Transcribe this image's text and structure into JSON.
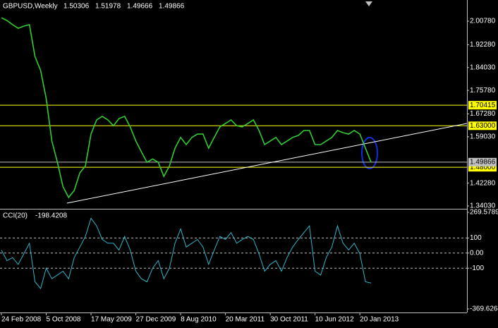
{
  "chart_data": [
    {
      "type": "line",
      "title": "GBPUSD,Weekly",
      "ohlc": [
        1.50306,
        1.51978,
        1.49666,
        1.49866
      ],
      "categories": [
        "24 Feb 2008",
        null,
        null,
        null,
        null,
        null,
        null,
        null,
        "5 Oct 2008",
        null,
        null,
        null,
        null,
        null,
        null,
        null,
        "17 May 2009",
        null,
        null,
        null,
        null,
        null,
        null,
        null,
        "27 Dec 2009",
        null,
        null,
        null,
        null,
        null,
        null,
        null,
        "8 Aug 2010",
        null,
        null,
        null,
        null,
        null,
        null,
        null,
        "20 Mar 2011",
        null,
        null,
        null,
        null,
        null,
        null,
        null,
        "30 Oct 2011",
        null,
        null,
        null,
        null,
        null,
        null,
        null,
        "10 Jun 2012",
        null,
        null,
        null,
        null,
        null,
        null,
        null,
        "20 Jan 2013",
        null,
        null
      ],
      "series": [
        {
          "color": "#33cc33",
          "values": [
            2.02,
            2.01,
            1.995,
            1.982,
            1.99,
            1.995,
            1.88,
            1.83,
            1.728,
            1.575,
            1.498,
            1.41,
            1.371,
            1.396,
            1.46,
            1.485,
            1.6,
            1.651,
            1.664,
            1.651,
            1.63,
            1.656,
            1.664,
            1.626,
            1.575,
            1.536,
            1.498,
            1.51,
            1.498,
            1.447,
            1.485,
            1.549,
            1.588,
            1.562,
            1.588,
            1.6,
            1.6,
            1.549,
            1.588,
            1.626,
            1.638,
            1.651,
            1.63,
            1.626,
            1.638,
            1.651,
            1.613,
            1.562,
            1.575,
            1.588,
            1.562,
            1.575,
            1.588,
            1.595,
            1.613,
            1.613,
            1.562,
            1.562,
            1.575,
            1.588,
            1.613,
            1.605,
            1.6,
            1.613,
            1.6,
            1.549,
            1.49866
          ]
        }
      ],
      "ylim": [
        1.3403,
        2.0842
      ],
      "yticks": [
        {
          "value": 2.0078,
          "label": "2.00780"
        },
        {
          "value": 1.9228,
          "label": "1.92280"
        },
        {
          "value": 1.8403,
          "label": "1.84030"
        },
        {
          "value": 1.7578,
          "label": "1.75780"
        },
        {
          "value": 1.6728,
          "label": "1.67280"
        },
        {
          "value": 1.5903,
          "label": "1.59030"
        },
        {
          "value": 1.4228,
          "label": "1.42280"
        },
        {
          "value": 1.3403,
          "label": "1.34030"
        }
      ],
      "hlines": [
        {
          "value": 1.70415,
          "label": "1.70415",
          "color": "#ffff00"
        },
        {
          "value": 1.63,
          "label": "1.63000",
          "color": "#ffff00"
        },
        {
          "value": 1.48,
          "label": "1.48000",
          "color": "#ffff00"
        },
        {
          "value": 1.49866,
          "label": "1.49866",
          "color": "#c0c0c0"
        }
      ],
      "trendline": {
        "x": [
          11.7,
          83.1
        ],
        "y": [
          1.3505,
          1.6384
        ],
        "color": "#ffffff"
      }
    },
    {
      "type": "line",
      "title": "CCI(20)",
      "series": [
        {
          "color": "#2fb6c8",
          "values": [
            20,
            -50,
            -30,
            -75,
            -5,
            65,
            -190,
            -235,
            -100,
            -170,
            -145,
            -120,
            -170,
            -30,
            40,
            110,
            230,
            180,
            90,
            65,
            65,
            20,
            110,
            20,
            -120,
            -170,
            -190,
            -100,
            -50,
            -170,
            -100,
            65,
            160,
            40,
            65,
            90,
            40,
            -75,
            20,
            110,
            90,
            135,
            65,
            90,
            110,
            90,
            -5,
            -120,
            -75,
            -50,
            -120,
            -30,
            40,
            90,
            135,
            180,
            -120,
            -145,
            -30,
            40,
            180,
            65,
            20,
            65,
            -5,
            -190,
            -198.4208
          ]
        }
      ],
      "ylim": [
        -369.6264,
        269.5789
      ],
      "yticks": [
        269.5789,
        100,
        {
          "value": 0,
          "label": "0.00"
        },
        -100,
        -369.6264
      ],
      "levels": [
        100,
        0,
        -100
      ]
    }
  ]
}
